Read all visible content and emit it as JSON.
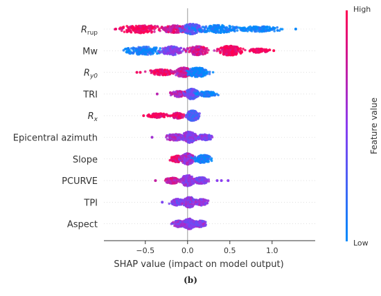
{
  "chart_data": {
    "type": "scatter",
    "subtype": "shap-beeswarm",
    "xlabel": "SHAP value (impact on model output)",
    "xlim": [
      -0.99,
      1.51
    ],
    "xticks": [
      -0.5,
      0.0,
      0.5,
      1.0
    ],
    "xtick_labels": [
      "−0.5",
      "0.0",
      "0.5",
      "1.0"
    ],
    "zero_line": 0,
    "grid": false,
    "colorbar": {
      "label": "Feature value",
      "high_label": "High",
      "low_label": "Low",
      "high_color": "#ff0052",
      "mid_color": "#8a3cf0",
      "low_color": "#008bfb",
      "placement": "right"
    },
    "features": [
      {
        "name": "R",
        "sub": "rup",
        "italic": true,
        "min": -0.87,
        "max": 1.29,
        "outliers": [
          -0.85,
          1.28
        ],
        "clusters": [
          {
            "center": -0.55,
            "spread": 0.22,
            "width": 0.45,
            "color": 0.95
          },
          {
            "center": -0.15,
            "spread": 0.14,
            "width": 0.4,
            "color": 0.8
          },
          {
            "center": 0.05,
            "spread": 0.1,
            "width": 0.6,
            "color": 0.3
          },
          {
            "center": 0.35,
            "spread": 0.2,
            "width": 0.45,
            "color": 0.05
          },
          {
            "center": 0.85,
            "spread": 0.22,
            "width": 0.28,
            "color": 0.02
          }
        ]
      },
      {
        "name": "Mw",
        "sub": "",
        "italic": false,
        "min": -0.84,
        "max": 1.03,
        "outliers": [
          1.02
        ],
        "clusters": [
          {
            "center": -0.52,
            "spread": 0.2,
            "width": 0.45,
            "color": 0.05
          },
          {
            "center": -0.18,
            "spread": 0.1,
            "width": 0.5,
            "color": 0.45
          },
          {
            "center": 0.12,
            "spread": 0.1,
            "width": 0.5,
            "color": 0.8
          },
          {
            "center": 0.5,
            "spread": 0.12,
            "width": 0.55,
            "color": 0.98
          },
          {
            "center": 0.85,
            "spread": 0.1,
            "width": 0.2,
            "color": 1.0
          }
        ]
      },
      {
        "name": "R",
        "sub": "y0",
        "italic": true,
        "min": -0.6,
        "max": 0.32,
        "outliers": [
          -0.6,
          -0.56
        ],
        "clusters": [
          {
            "center": -0.3,
            "spread": 0.12,
            "width": 0.3,
            "color": 0.95
          },
          {
            "center": -0.05,
            "spread": 0.08,
            "width": 0.55,
            "color": 0.75
          },
          {
            "center": 0.12,
            "spread": 0.1,
            "width": 0.55,
            "color": 0.05
          }
        ]
      },
      {
        "name": "TRI",
        "sub": "",
        "italic": false,
        "min": -0.36,
        "max": 0.37,
        "outliers": [
          -0.36
        ],
        "clusters": [
          {
            "center": -0.1,
            "spread": 0.08,
            "width": 0.3,
            "color": 0.7
          },
          {
            "center": 0.05,
            "spread": 0.06,
            "width": 0.6,
            "color": 0.35
          },
          {
            "center": 0.22,
            "spread": 0.1,
            "width": 0.25,
            "color": 0.05
          }
        ]
      },
      {
        "name": "R",
        "sub": "x",
        "italic": true,
        "min": -0.52,
        "max": 0.2,
        "outliers": [
          -0.52
        ],
        "clusters": [
          {
            "center": -0.35,
            "spread": 0.1,
            "width": 0.22,
            "color": 0.98
          },
          {
            "center": -0.12,
            "spread": 0.06,
            "width": 0.3,
            "color": 0.85
          },
          {
            "center": 0.06,
            "spread": 0.06,
            "width": 0.6,
            "color": 0.3
          }
        ]
      },
      {
        "name": "Epicentral azimuth",
        "sub": "",
        "italic": false,
        "min": -0.42,
        "max": 0.33,
        "outliers": [
          -0.42
        ],
        "clusters": [
          {
            "center": -0.15,
            "spread": 0.09,
            "width": 0.35,
            "color": 0.6
          },
          {
            "center": 0.02,
            "spread": 0.07,
            "width": 0.65,
            "color": 0.5
          },
          {
            "center": 0.2,
            "spread": 0.08,
            "width": 0.3,
            "color": 0.45
          }
        ]
      },
      {
        "name": "Slope",
        "sub": "",
        "italic": false,
        "min": -0.22,
        "max": 0.32,
        "outliers": [],
        "clusters": [
          {
            "center": -0.12,
            "spread": 0.06,
            "width": 0.35,
            "color": 0.95
          },
          {
            "center": 0.0,
            "spread": 0.06,
            "width": 0.65,
            "color": 0.6
          },
          {
            "center": 0.18,
            "spread": 0.08,
            "width": 0.45,
            "color": 0.05
          }
        ]
      },
      {
        "name": "PCURVE",
        "sub": "",
        "italic": false,
        "min": -0.38,
        "max": 0.48,
        "outliers": [
          -0.38,
          0.35,
          0.4,
          0.48
        ],
        "clusters": [
          {
            "center": -0.18,
            "spread": 0.07,
            "width": 0.3,
            "color": 0.75
          },
          {
            "center": 0.0,
            "spread": 0.06,
            "width": 0.65,
            "color": 0.55
          },
          {
            "center": 0.16,
            "spread": 0.07,
            "width": 0.35,
            "color": 0.5
          }
        ]
      },
      {
        "name": "TPI",
        "sub": "",
        "italic": false,
        "min": -0.3,
        "max": 0.28,
        "outliers": [
          -0.3
        ],
        "clusters": [
          {
            "center": -0.12,
            "spread": 0.07,
            "width": 0.35,
            "color": 0.45
          },
          {
            "center": 0.02,
            "spread": 0.06,
            "width": 0.6,
            "color": 0.5
          },
          {
            "center": 0.16,
            "spread": 0.06,
            "width": 0.35,
            "color": 0.55
          }
        ]
      },
      {
        "name": "Aspect",
        "sub": "",
        "italic": false,
        "min": -0.22,
        "max": 0.26,
        "outliers": [],
        "clusters": [
          {
            "center": -0.1,
            "spread": 0.06,
            "width": 0.35,
            "color": 0.5
          },
          {
            "center": 0.02,
            "spread": 0.06,
            "width": 0.6,
            "color": 0.5
          },
          {
            "center": 0.15,
            "spread": 0.06,
            "width": 0.35,
            "color": 0.5
          }
        ]
      }
    ]
  },
  "caption": "(b)"
}
